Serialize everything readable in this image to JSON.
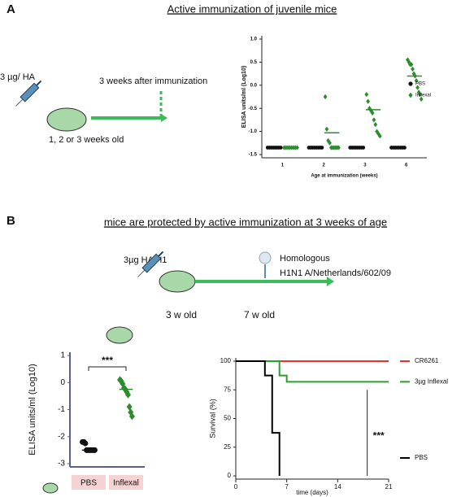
{
  "panels": [
    {
      "label": "A",
      "heading": "Active immunization of juvenile mice",
      "schematic": {
        "dose": "3 µg/ HA",
        "age": "1, 2 or 3 weeks old",
        "timing": "3 weeks after immunization"
      }
    },
    {
      "label": "B",
      "heading": "mice are protected by active immunization at 3 weeks of age",
      "schematic": {
        "dose": "3µg HA H1",
        "start": "3 w old",
        "end": "7 w old",
        "challenge": [
          "Homologous",
          "H1N1 A/Netherlands/602/09"
        ]
      }
    }
  ],
  "chart_data": [
    {
      "type": "strip",
      "y_label": "ELISA units/ml (Log10)",
      "x_label": "Age at immunization (weeks)",
      "categories": [
        "1",
        "2",
        "3",
        "6"
      ],
      "ylim": [
        -1.5,
        1.0
      ],
      "yticks": [
        {
          "value": -1.5,
          "label": "-1.5"
        },
        {
          "value": -1,
          "label": "-1.0"
        },
        {
          "value": -0.5,
          "label": "-0.5"
        },
        {
          "value": 0,
          "label": "0.0"
        },
        {
          "value": 0.5,
          "label": "0.5"
        },
        {
          "value": 1,
          "label": "1.0"
        }
      ],
      "legend": "right",
      "series": [
        {
          "name": "PBS",
          "color": "#111111",
          "marker": "circle",
          "values": [
            [
              -1.35,
              -1.35,
              -1.35,
              -1.35,
              -1.35,
              -1.35,
              -1.35,
              -1.35
            ],
            [
              -1.35,
              -1.35,
              -1.35,
              -1.35,
              -1.35,
              -1.35,
              -1.35,
              -1.35
            ],
            [
              -1.35,
              -1.35,
              -1.35,
              -1.35,
              -1.35,
              -1.35,
              -1.35,
              -1.35
            ],
            [
              -1.35,
              -1.35,
              -1.35,
              -1.35,
              -1.35,
              -1.35,
              -1.35,
              -1.35
            ]
          ],
          "means": [
            -1.35,
            -1.35,
            -1.35,
            -1.35
          ]
        },
        {
          "name": "Inflexal",
          "color": "#2e8b2e",
          "marker": "diamond",
          "values": [
            [
              -1.35,
              -1.35,
              -1.35,
              -1.35,
              -1.35,
              -1.35,
              -1.35,
              -1.35
            ],
            [
              -0.25,
              -0.95,
              -1.2,
              -1.25,
              -1.35,
              -1.35,
              -1.35,
              -1.35,
              -1.35,
              -1.35
            ],
            [
              -0.2,
              -0.35,
              -0.5,
              -0.55,
              -0.6,
              -0.75,
              -0.85,
              -1.0,
              -1.05,
              -1.1
            ],
            [
              0.55,
              0.5,
              0.45,
              0.45,
              0.35,
              0.25,
              0.2,
              0.1,
              -0.05,
              -0.15,
              -0.2,
              -0.3
            ]
          ],
          "means": [
            -1.35,
            -1.03,
            -0.53,
            0.2
          ]
        }
      ]
    },
    {
      "type": "strip",
      "y_label": "ELISA units/ml (Log10)",
      "categories": [
        "PBS",
        "Inflexal"
      ],
      "ylim": [
        -3,
        1
      ],
      "yticks": [
        -3,
        -2,
        -1,
        0,
        1
      ],
      "annotation": "***",
      "colors": [
        "#111111",
        "#2e8b2e"
      ],
      "markers": [
        "circle",
        "diamond"
      ],
      "values": [
        [
          -2.2,
          -2.2,
          -2.25,
          -2.5,
          -2.5,
          -2.5,
          -2.5,
          -2.5,
          -2.5,
          -2.5
        ],
        [
          0.1,
          0.05,
          -0.05,
          -0.2,
          -0.25,
          -0.35,
          -0.45,
          -0.9,
          -1.1,
          -1.25
        ]
      ],
      "means": [
        -2.5,
        -0.25
      ]
    },
    {
      "type": "line",
      "y_label": "Survival (%)",
      "x_label": "time (days)",
      "xlim": [
        0,
        21
      ],
      "xticks": [
        0,
        7,
        14,
        21
      ],
      "ylim": [
        0,
        100
      ],
      "yticks": [
        0,
        25,
        50,
        75,
        100
      ],
      "annotation": "***",
      "legend": "right",
      "series": [
        {
          "name": "CR6261",
          "color": "#e8312a",
          "x": [
            0,
            21
          ],
          "values": [
            100,
            100
          ]
        },
        {
          "name": "3µg Inflexal",
          "color": "#2ca02c",
          "x": [
            0,
            6,
            6,
            7,
            7,
            21
          ],
          "values": [
            100,
            100,
            87.5,
            87.5,
            82,
            82
          ]
        },
        {
          "name": "PBS",
          "color": "#000000",
          "x": [
            0,
            4,
            4,
            5,
            5,
            6,
            6
          ],
          "values": [
            100,
            100,
            87.5,
            87.5,
            37.5,
            37.5,
            0
          ]
        }
      ]
    }
  ]
}
